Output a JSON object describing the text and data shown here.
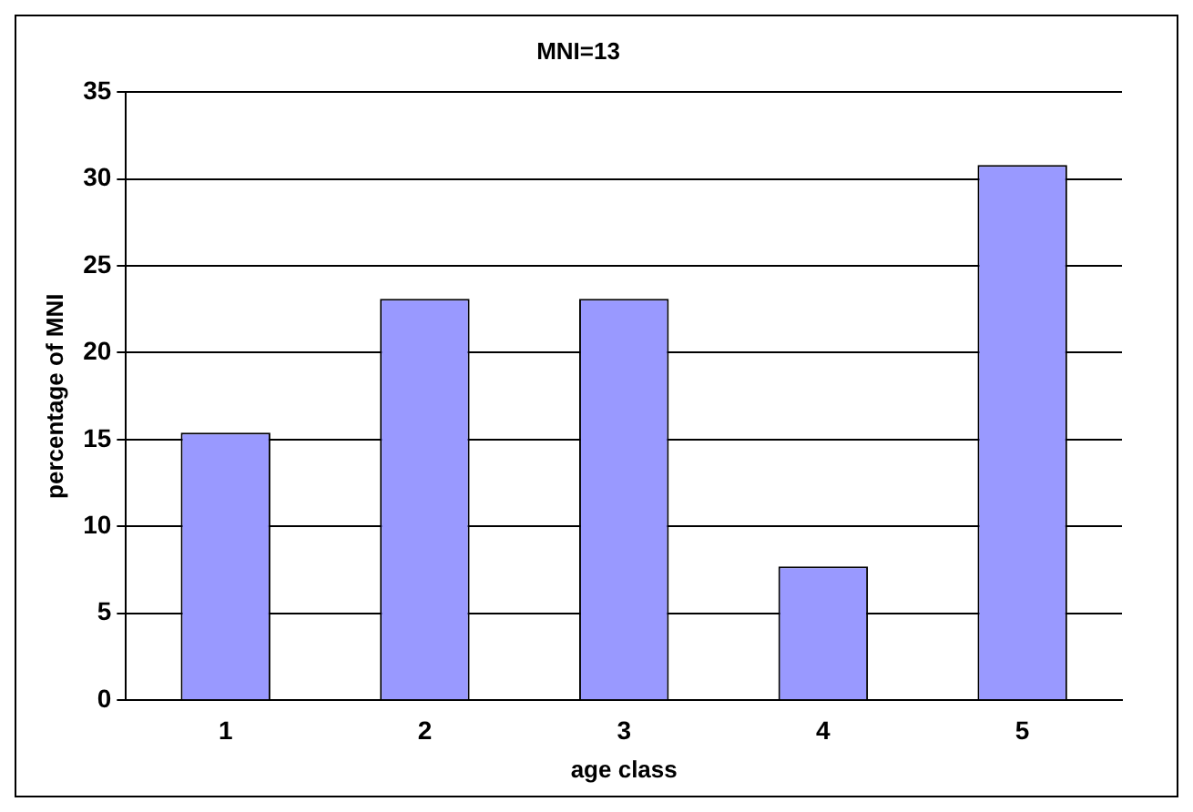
{
  "chart_data": {
    "type": "bar",
    "title": "MNI=13",
    "xlabel": "age class",
    "ylabel": "percentage of MNI",
    "categories": [
      "1",
      "2",
      "3",
      "4",
      "5"
    ],
    "values": [
      15.4,
      23.1,
      23.1,
      7.7,
      30.8
    ],
    "color": "#9999ff",
    "ylim": [
      0,
      35
    ],
    "yticks": [
      0,
      5,
      10,
      15,
      20,
      25,
      30,
      35
    ],
    "grid": "y",
    "legend": false
  }
}
